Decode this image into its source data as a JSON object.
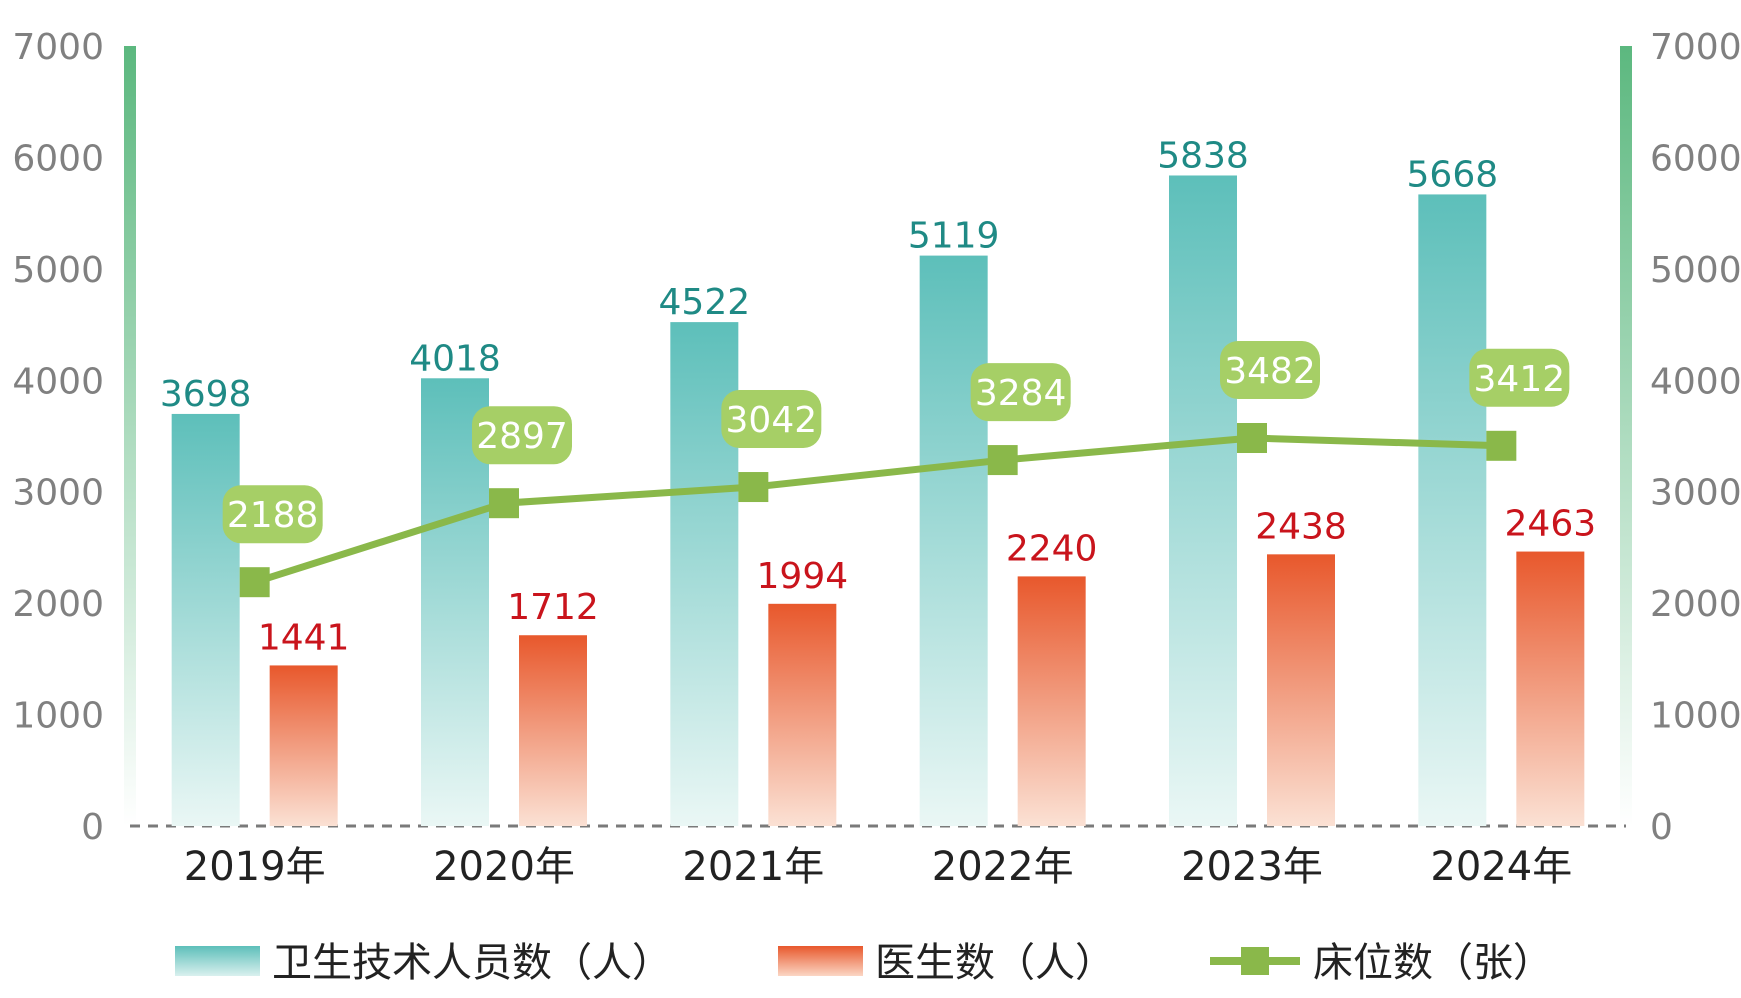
{
  "chart_data": {
    "type": "bar",
    "categories": [
      "2019年",
      "2020年",
      "2021年",
      "2022年",
      "2023年",
      "2024年"
    ],
    "series": [
      {
        "name": "卫生技术人员数（人）",
        "kind": "bar",
        "axis": "left",
        "color": "#5dbfba",
        "values": [
          3698,
          4018,
          4522,
          5119,
          5838,
          5668
        ]
      },
      {
        "name": "医生数（人）",
        "kind": "bar",
        "axis": "left",
        "color": "#ea5a2d",
        "values": [
          1441,
          1712,
          1994,
          2240,
          2438,
          2463
        ]
      },
      {
        "name": "床位数（张）",
        "kind": "line",
        "axis": "right",
        "color": "#8ab84a",
        "values": [
          2188,
          2897,
          3042,
          3284,
          3482,
          3412
        ]
      }
    ],
    "ylim": [
      0,
      7000
    ],
    "y2lim": [
      0,
      7000
    ],
    "yticks": [
      "0",
      "1000",
      "2000",
      "3000",
      "4000",
      "5000",
      "6000",
      "7000"
    ],
    "y2ticks": [
      "0",
      "1000",
      "2000",
      "3000",
      "4000",
      "5000",
      "6000",
      "7000"
    ],
    "legend_position": "bottom",
    "grid": false,
    "axis_color": "#5cb87f",
    "label_colors": {
      "staff": "#1f8a85",
      "doctors": "#c9141c",
      "beds_bubble": "#a6cf66"
    }
  }
}
